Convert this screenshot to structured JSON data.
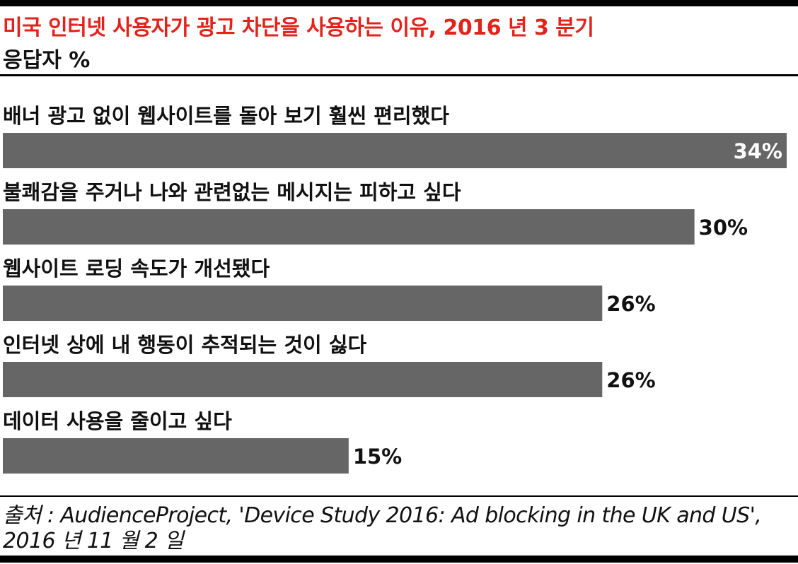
{
  "header": {
    "title": "미국 인터넷 사용자가 광고 차단을 사용하는 이유, 2016 년 3 분기",
    "subtitle": "응답자 %",
    "title_color": "#e3231b"
  },
  "chart_data": {
    "type": "bar",
    "orientation": "horizontal",
    "categories": [
      "배너 광고 없이 웹사이트를 돌아 보기 훨씬 편리했다",
      "불쾌감을 주거나 나와 관련없는 메시지는 피하고 싶다",
      "웹사이트 로딩 속도가 개선됐다",
      "인터넷 상에 내 행동이 추적되는 것이 싫다",
      "데이터 사용을 줄이고 싶다"
    ],
    "values": [
      34,
      30,
      26,
      26,
      15
    ],
    "value_labels": [
      "34%",
      "30%",
      "26%",
      "26%",
      "15%"
    ],
    "xlim": [
      0,
      34
    ],
    "bar_color": "#666666",
    "grid": false
  },
  "footer": {
    "source": "출처 : AudienceProject, 'Device Study 2016: Ad blocking in the UK and US', 2016 년 11 월 2 일"
  }
}
